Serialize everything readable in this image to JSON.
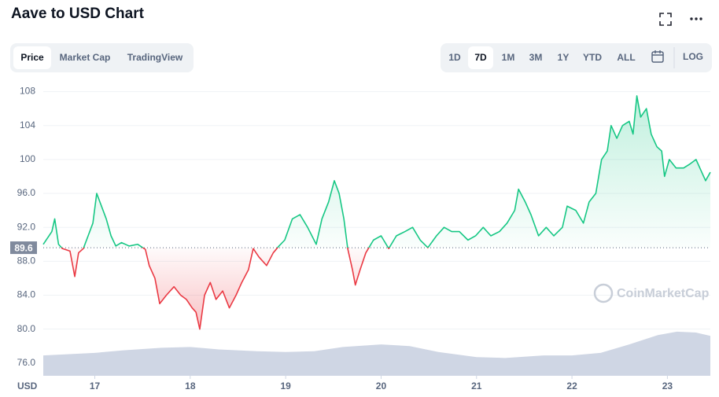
{
  "chart_data": {
    "type": "line",
    "title": "Aave to USD Chart",
    "tabs": [
      "Price",
      "Market Cap",
      "TradingView"
    ],
    "selected_tab": "Price",
    "ranges": [
      "1D",
      "7D",
      "1M",
      "3M",
      "1Y",
      "YTD",
      "ALL"
    ],
    "selected_range": "7D",
    "log_button": "LOG",
    "y_unit": "USD",
    "watermark": "CoinMarketCap",
    "baseline": 89.6,
    "up_color": "#16c784",
    "down_color": "#ea3943",
    "grid": true,
    "xlim": [
      16.46,
      23.45
    ],
    "xticks": [
      17,
      18,
      19,
      20,
      21,
      22,
      23
    ],
    "ylim": [
      74.5,
      110
    ],
    "yticks": [
      {
        "value": 76,
        "label": "76.0"
      },
      {
        "value": 80,
        "label": "80.0"
      },
      {
        "value": 84,
        "label": "84.0"
      },
      {
        "value": 88,
        "label": "88.0"
      },
      {
        "value": 92,
        "label": "92.0"
      },
      {
        "value": 96,
        "label": "96.0"
      },
      100,
      104,
      108
    ],
    "x": [
      16.46,
      16.55,
      16.58,
      16.62,
      16.66,
      16.74,
      16.79,
      16.83,
      16.88,
      16.93,
      16.98,
      17.02,
      17.07,
      17.12,
      17.17,
      17.22,
      17.28,
      17.36,
      17.45,
      17.53,
      17.57,
      17.63,
      17.68,
      17.75,
      17.83,
      17.9,
      17.96,
      18.02,
      18.06,
      18.1,
      18.15,
      18.21,
      18.27,
      18.34,
      18.41,
      18.48,
      18.54,
      18.61,
      18.66,
      18.72,
      18.8,
      18.87,
      18.93,
      18.99,
      19.07,
      19.15,
      19.23,
      19.32,
      19.38,
      19.45,
      19.51,
      19.56,
      19.61,
      19.65,
      19.7,
      19.73,
      19.78,
      19.84,
      19.92,
      20.0,
      20.08,
      20.16,
      20.25,
      20.33,
      20.41,
      20.49,
      20.58,
      20.66,
      20.74,
      20.82,
      20.91,
      20.99,
      21.07,
      21.15,
      21.24,
      21.32,
      21.4,
      21.44,
      21.51,
      21.57,
      21.65,
      21.73,
      21.81,
      21.9,
      21.95,
      22.04,
      22.12,
      22.18,
      22.25,
      22.31,
      22.37,
      22.41,
      22.47,
      22.53,
      22.6,
      22.64,
      22.68,
      22.72,
      22.78,
      22.83,
      22.89,
      22.94,
      22.97,
      23.02,
      23.09,
      23.17,
      23.24,
      23.3,
      23.34,
      23.38,
      23.4,
      23.45
    ],
    "values": [
      90,
      91.5,
      93,
      90,
      89.5,
      89.2,
      86.2,
      89,
      89.5,
      91,
      92.5,
      96,
      94.5,
      93,
      91,
      89.8,
      90.2,
      89.8,
      90,
      89.4,
      87.5,
      86,
      83,
      84,
      85,
      84,
      83.5,
      82.5,
      82,
      80,
      84,
      85.5,
      83.5,
      84.5,
      82.5,
      84,
      85.5,
      87,
      89.5,
      88.5,
      87.5,
      89,
      89.8,
      90.5,
      93,
      93.5,
      92,
      90,
      93,
      95,
      97.5,
      96,
      93,
      89.5,
      87,
      85.2,
      87,
      89,
      90.5,
      91,
      89.5,
      91,
      91.5,
      92,
      90.5,
      89.6,
      91,
      92,
      91.5,
      91.5,
      90.5,
      91,
      92,
      91,
      91.5,
      92.5,
      94,
      96.5,
      95,
      93.5,
      91,
      92,
      91,
      92,
      94.5,
      94,
      92.5,
      95,
      96,
      100,
      101,
      104,
      102.5,
      104,
      104.5,
      103,
      107.5,
      105,
      106,
      103,
      101.5,
      101,
      98,
      100,
      99,
      99,
      99.5,
      100,
      99,
      98,
      97.5,
      98.5
    ],
    "volume": {
      "x": [
        16.46,
        17,
        17.3,
        17.7,
        18,
        18.3,
        18.7,
        19,
        19.3,
        19.6,
        20,
        20.3,
        20.6,
        21,
        21.3,
        21.7,
        22,
        22.3,
        22.6,
        22.9,
        23.1,
        23.3,
        23.45
      ],
      "values": [
        76.9,
        77.2,
        77.5,
        77.8,
        77.9,
        77.6,
        77.4,
        77.3,
        77.4,
        77.9,
        78.2,
        78,
        77.3,
        76.7,
        76.6,
        76.9,
        76.9,
        77.2,
        78.2,
        79.3,
        79.7,
        79.6,
        79.2
      ],
      "color": "#cfd6e4"
    }
  }
}
